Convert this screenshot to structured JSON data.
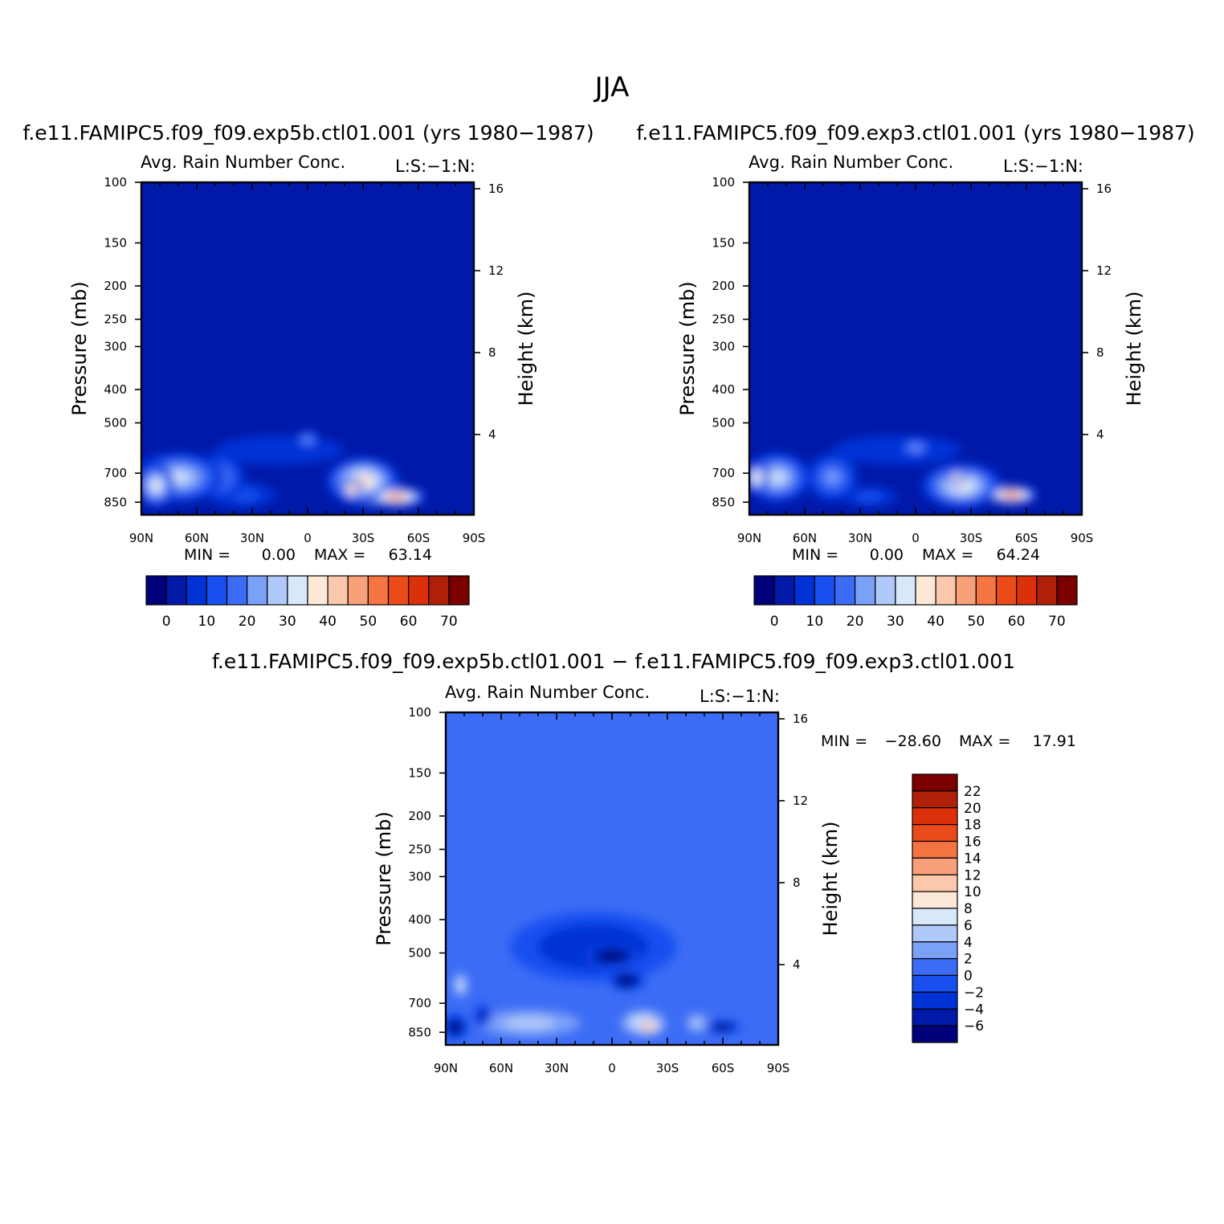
{
  "figure": {
    "title": "JJA",
    "colors": {
      "model_scale": [
        "#00007a",
        "#0019a8",
        "#0032d6",
        "#1850f0",
        "#3c6cf5",
        "#7aa0f8",
        "#b0c8fa",
        "#d8e8fb",
        "#fde8d8",
        "#fbc8ac",
        "#f8a07a",
        "#f47442",
        "#eb4a1a",
        "#dc300a",
        "#b02008",
        "#7a0000"
      ],
      "diff_scale": [
        "#00007a",
        "#0019a8",
        "#0032d6",
        "#1850f0",
        "#3c6cf5",
        "#7aa0f8",
        "#b0c8fa",
        "#d8e8fb",
        "#fde8d8",
        "#fbc8ac",
        "#f8a07a",
        "#f47442",
        "#eb4a1a",
        "#dc300a",
        "#b02008",
        "#7a0000"
      ]
    }
  },
  "chart_data": [
    {
      "type": "heatmap",
      "panel_title": "f.e11.FAMIPC5.f09_f09.exp5b.ctl01.001 (yrs 1980−1987)",
      "subtitle_left": "Avg. Rain Number Conc.",
      "subtitle_right": "L:S:−1:N:",
      "ylabel": "Pressure (mb)",
      "y2label": "Height (km)",
      "x_ticks": [
        "90N",
        "60N",
        "30N",
        "0",
        "30S",
        "60S",
        "90S"
      ],
      "x_tick_values": [
        90,
        60,
        30,
        0,
        -30,
        -60,
        -90
      ],
      "y_ticks": [
        100,
        150,
        200,
        250,
        300,
        400,
        500,
        700,
        850
      ],
      "y_range": [
        100,
        925
      ],
      "y_scale": "log",
      "y2_ticks": [
        16,
        12,
        8,
        4
      ],
      "min_label": "MIN =",
      "min_value": "0.00",
      "max_label": "MAX =",
      "max_value": "63.14",
      "background_value": 2,
      "colorbar": {
        "orientation": "horizontal",
        "labels": [
          "0",
          "10",
          "20",
          "30",
          "40",
          "50",
          "60",
          "70"
        ]
      },
      "features": [
        {
          "lat": 70,
          "p": 720,
          "w": 25,
          "h": 240,
          "v": 30
        },
        {
          "lat": 82,
          "p": 760,
          "w": 10,
          "h": 220,
          "v": 36
        },
        {
          "lat": 48,
          "p": 720,
          "w": 14,
          "h": 230,
          "v": 22
        },
        {
          "lat": 35,
          "p": 810,
          "w": 18,
          "h": 140,
          "v": 14
        },
        {
          "lat": 15,
          "p": 600,
          "w": 35,
          "h": 120,
          "v": 8
        },
        {
          "lat": 0,
          "p": 560,
          "w": 7,
          "h": 70,
          "v": 22
        },
        {
          "lat": -30,
          "p": 740,
          "w": 20,
          "h": 240,
          "v": 40
        },
        {
          "lat": -48,
          "p": 820,
          "w": 16,
          "h": 110,
          "v": 58
        },
        {
          "lat": -24,
          "p": 780,
          "w": 6,
          "h": 120,
          "v": 53
        },
        {
          "lat": -37,
          "p": 840,
          "w": 6,
          "h": 70,
          "v": 56
        }
      ]
    },
    {
      "type": "heatmap",
      "panel_title": "f.e11.FAMIPC5.f09_f09.exp3.ctl01.001 (yrs 1980−1987)",
      "subtitle_left": "Avg. Rain Number Conc.",
      "subtitle_right": "L:S:−1:N:",
      "ylabel": "Pressure (mb)",
      "y2label": "Height (km)",
      "x_ticks": [
        "90N",
        "60N",
        "30N",
        "0",
        "30S",
        "60S",
        "90S"
      ],
      "x_tick_values": [
        90,
        60,
        30,
        0,
        -30,
        -60,
        -90
      ],
      "y_ticks": [
        100,
        150,
        200,
        250,
        300,
        400,
        500,
        700,
        850
      ],
      "y_range": [
        100,
        925
      ],
      "y_scale": "log",
      "y2_ticks": [
        16,
        12,
        8,
        4
      ],
      "min_label": "MIN =",
      "min_value": "0.00",
      "max_label": "MAX =",
      "max_value": "64.24",
      "background_value": 2,
      "colorbar": {
        "orientation": "horizontal",
        "labels": [
          "0",
          "10",
          "20",
          "30",
          "40",
          "50",
          "60",
          "70"
        ]
      },
      "features": [
        {
          "lat": 75,
          "p": 720,
          "w": 18,
          "h": 240,
          "v": 34
        },
        {
          "lat": 86,
          "p": 720,
          "w": 7,
          "h": 150,
          "v": 42
        },
        {
          "lat": 45,
          "p": 720,
          "w": 14,
          "h": 230,
          "v": 20
        },
        {
          "lat": 25,
          "p": 820,
          "w": 15,
          "h": 110,
          "v": 13
        },
        {
          "lat": 10,
          "p": 600,
          "w": 35,
          "h": 120,
          "v": 8
        },
        {
          "lat": 0,
          "p": 590,
          "w": 10,
          "h": 80,
          "v": 24
        },
        {
          "lat": -25,
          "p": 760,
          "w": 22,
          "h": 230,
          "v": 38
        },
        {
          "lat": -52,
          "p": 810,
          "w": 14,
          "h": 100,
          "v": 62
        },
        {
          "lat": -22,
          "p": 720,
          "w": 5,
          "h": 80,
          "v": 46
        }
      ]
    },
    {
      "type": "heatmap",
      "panel_title": "f.e11.FAMIPC5.f09_f09.exp5b.ctl01.001 − f.e11.FAMIPC5.f09_f09.exp3.ctl01.001",
      "subtitle_left": "Avg. Rain Number Conc.",
      "subtitle_right": "L:S:−1:N:",
      "ylabel": "Pressure (mb)",
      "y2label": "Height (km)",
      "x_ticks": [
        "90N",
        "60N",
        "30N",
        "0",
        "30S",
        "60S",
        "90S"
      ],
      "x_tick_values": [
        90,
        60,
        30,
        0,
        -30,
        -60,
        -90
      ],
      "y_ticks": [
        100,
        150,
        200,
        250,
        300,
        400,
        500,
        700,
        850
      ],
      "y_range": [
        100,
        925
      ],
      "y_scale": "log",
      "y2_ticks": [
        16,
        12,
        8,
        4
      ],
      "min_label": "MIN =",
      "min_value": "−28.60",
      "max_label": "MAX =",
      "max_value": "17.91",
      "background_value": 1,
      "colorbar": {
        "orientation": "vertical",
        "labels": [
          "22",
          "20",
          "18",
          "16",
          "14",
          "12",
          "10",
          "8",
          "6",
          "4",
          "2",
          "0",
          "−2",
          "−4",
          "−6"
        ]
      },
      "features": [
        {
          "lat": 10,
          "p": 480,
          "w": 45,
          "h": 220,
          "v": -4
        },
        {
          "lat": 0,
          "p": 510,
          "w": 14,
          "h": 70,
          "v": -12
        },
        {
          "lat": -8,
          "p": 600,
          "w": 10,
          "h": 80,
          "v": -10
        },
        {
          "lat": -20,
          "p": 820,
          "w": 8,
          "h": 80,
          "v": 15
        },
        {
          "lat": -17,
          "p": 800,
          "w": 12,
          "h": 140,
          "v": 9
        },
        {
          "lat": -60,
          "p": 820,
          "w": 10,
          "h": 70,
          "v": -9
        },
        {
          "lat": -46,
          "p": 800,
          "w": 6,
          "h": 100,
          "v": 5
        },
        {
          "lat": 45,
          "p": 800,
          "w": 28,
          "h": 140,
          "v": 5
        },
        {
          "lat": 85,
          "p": 820,
          "w": 7,
          "h": 140,
          "v": -9
        },
        {
          "lat": 82,
          "p": 620,
          "w": 4,
          "h": 100,
          "v": 7
        },
        {
          "lat": 70,
          "p": 760,
          "w": 5,
          "h": 120,
          "v": -5
        }
      ]
    }
  ]
}
